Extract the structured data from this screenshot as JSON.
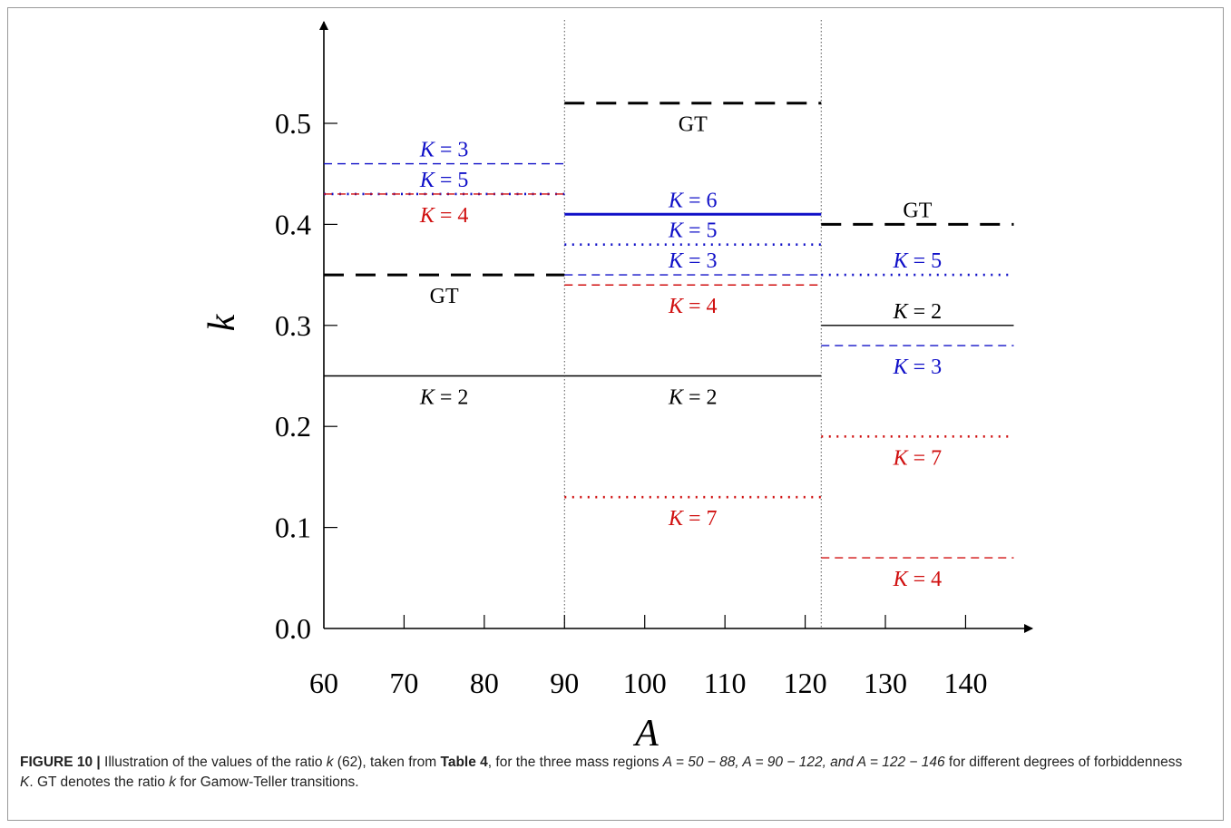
{
  "chart_data": {
    "type": "line",
    "title": "",
    "xlabel": "A",
    "ylabel": "k",
    "xlim": [
      60,
      146
    ],
    "ylim": [
      0.0,
      0.58
    ],
    "x_ticks": [
      60,
      70,
      80,
      90,
      100,
      110,
      120,
      130,
      140
    ],
    "x_tick_labels": [
      "60",
      "70",
      "80",
      "90",
      "100",
      "110",
      "120",
      "130",
      "140"
    ],
    "y_ticks": [
      0.0,
      0.1,
      0.2,
      0.3,
      0.4,
      0.5
    ],
    "y_tick_labels": [
      "0.0",
      "0.1",
      "0.2",
      "0.3",
      "0.4",
      "0.5"
    ],
    "region_boundaries": [
      90,
      122
    ],
    "grid": false,
    "colors": {
      "black": "#000000",
      "blue": "#1010c8",
      "red": "#d01010"
    },
    "segments": [
      {
        "label": "K = 3",
        "x": [
          60,
          90
        ],
        "y": 0.46,
        "color": "blue",
        "style": "dashed",
        "label_side": "above"
      },
      {
        "label": "K = 5",
        "x": [
          60,
          90
        ],
        "y": 0.43,
        "color": "blue",
        "style": "dotted",
        "label_side": "above"
      },
      {
        "label": "K = 4",
        "x": [
          60,
          90
        ],
        "y": 0.43,
        "color": "red",
        "style": "dashed",
        "label_side": "below"
      },
      {
        "label": "GT",
        "x": [
          60,
          90
        ],
        "y": 0.35,
        "color": "black",
        "style": "thick-dashed",
        "label_side": "below"
      },
      {
        "label": "K = 2",
        "x": [
          60,
          90
        ],
        "y": 0.25,
        "color": "black",
        "style": "solid",
        "label_side": "below"
      },
      {
        "label": "GT",
        "x": [
          90,
          122
        ],
        "y": 0.52,
        "color": "black",
        "style": "thick-dashed",
        "label_side": "below"
      },
      {
        "label": "K = 6",
        "x": [
          90,
          122
        ],
        "y": 0.41,
        "color": "blue",
        "style": "thick-solid",
        "label_side": "above"
      },
      {
        "label": "K = 5",
        "x": [
          90,
          122
        ],
        "y": 0.38,
        "color": "blue",
        "style": "dotted",
        "label_side": "above"
      },
      {
        "label": "K = 3",
        "x": [
          90,
          122
        ],
        "y": 0.35,
        "color": "blue",
        "style": "dashed",
        "label_side": "above"
      },
      {
        "label": "K = 4",
        "x": [
          90,
          122
        ],
        "y": 0.34,
        "color": "red",
        "style": "dashed",
        "label_side": "below"
      },
      {
        "label": "K = 2",
        "x": [
          90,
          122
        ],
        "y": 0.25,
        "color": "black",
        "style": "solid",
        "label_side": "below"
      },
      {
        "label": "K = 7",
        "x": [
          90,
          122
        ],
        "y": 0.13,
        "color": "red",
        "style": "dotted",
        "label_side": "below"
      },
      {
        "label": "GT",
        "x": [
          122,
          146
        ],
        "y": 0.4,
        "color": "black",
        "style": "thick-dashed",
        "label_side": "above"
      },
      {
        "label": "K = 5",
        "x": [
          122,
          146
        ],
        "y": 0.35,
        "color": "blue",
        "style": "dotted",
        "label_side": "above"
      },
      {
        "label": "K = 2",
        "x": [
          122,
          146
        ],
        "y": 0.3,
        "color": "black",
        "style": "solid",
        "label_side": "above"
      },
      {
        "label": "K = 3",
        "x": [
          122,
          146
        ],
        "y": 0.28,
        "color": "blue",
        "style": "dashed",
        "label_side": "below"
      },
      {
        "label": "K = 7",
        "x": [
          122,
          146
        ],
        "y": 0.19,
        "color": "red",
        "style": "dotted",
        "label_side": "below"
      },
      {
        "label": "K = 4",
        "x": [
          122,
          146
        ],
        "y": 0.07,
        "color": "red",
        "style": "dashed",
        "label_side": "below"
      }
    ]
  },
  "caption": {
    "figure_label": "FIGURE 10 |",
    "text_1": " Illustration of the values of the ratio ",
    "k_symbol": "k",
    "text_2": " (62), taken from ",
    "table_ref": "Table 4",
    "text_3": ", for the three mass regions ",
    "regions": "A = 50 − 88, A = 90 − 122, and A = 122 − 146",
    "text_4": " for different degrees of forbiddenness ",
    "K_symbol": "K",
    "text_5": ". GT denotes the ratio ",
    "k_symbol_2": "k",
    "text_6": " for Gamow-Teller transitions."
  }
}
